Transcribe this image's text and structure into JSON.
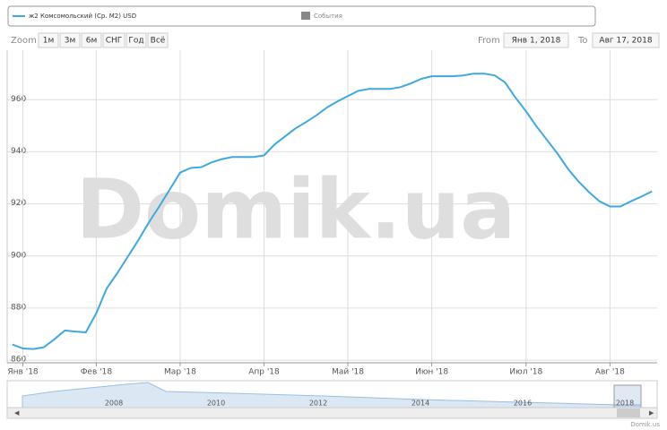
{
  "chart_data": {
    "type": "line",
    "categories": [
      null,
      "Янв '18",
      null,
      null,
      null,
      null,
      null,
      null,
      "Фев '18",
      null,
      null,
      null,
      null,
      null,
      null,
      null,
      "Мар '18",
      null,
      null,
      null,
      null,
      null,
      null,
      null,
      "Апр '18",
      null,
      null,
      null,
      null,
      null,
      null,
      null,
      "Май '18",
      null,
      null,
      null,
      null,
      null,
      null,
      null,
      "Июн '18",
      null,
      null,
      null,
      null,
      null,
      null,
      null,
      null,
      "Июл '18",
      null,
      null,
      null,
      null,
      null,
      null,
      null,
      "Авг '18",
      null,
      null,
      null,
      null
    ],
    "series": [
      {
        "name": "ж2 Комсомольский (Ср. М2) USD",
        "color": "#3fa8dc",
        "values": [
          866,
          864.5,
          864.3,
          865,
          868,
          871.4,
          871,
          870.7,
          878,
          887.6,
          893.4,
          899.7,
          906,
          912.8,
          919,
          925.5,
          932,
          933.8,
          934.1,
          935.9,
          937.2,
          938,
          938,
          938,
          938.6,
          942.8,
          945.9,
          949,
          951.4,
          954,
          957,
          959.3,
          961.4,
          963.4,
          964.1,
          964.1,
          964.1,
          964.8,
          966.2,
          968,
          969,
          969,
          969,
          969.3,
          970,
          970,
          969.3,
          966.6,
          960.7,
          955.5,
          949.7,
          944.5,
          939.3,
          933.4,
          928.6,
          924.5,
          921,
          919,
          919,
          921,
          922.8,
          924.8
        ]
      }
    ],
    "ylim": [
      859,
      979
    ],
    "yticks": [
      860,
      880,
      900,
      920,
      940,
      960
    ],
    "grid": true,
    "events_label": "События",
    "watermark": "Domik.ua"
  },
  "zoom": {
    "label": "Zoom",
    "buttons": [
      "1м",
      "3м",
      "6м",
      "СНГ",
      "Год",
      "Всё"
    ]
  },
  "range": {
    "from_label": "From",
    "from": "Янв 1, 2018",
    "to_label": "To",
    "to": "Авг 17, 2018"
  },
  "navigator": {
    "labels": [
      "2008",
      "2010",
      "2012",
      "2014",
      "2016",
      "2018"
    ]
  },
  "credit": "Domik.us"
}
